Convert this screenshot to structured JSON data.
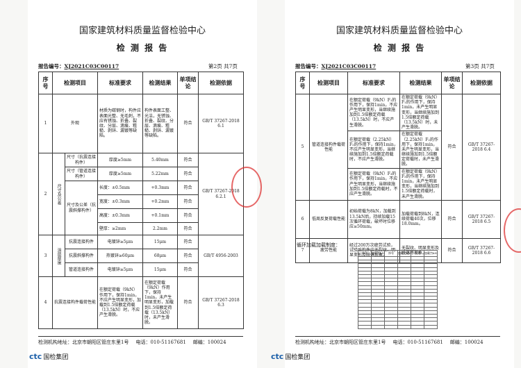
{
  "pages": [
    {
      "header": {
        "org": "国家建筑材料质量监督检验中心",
        "title": "检 测 报 告"
      },
      "report_no_label": "报告编号：",
      "report_no": "XJ2021C03C00117",
      "page_info": "第2页  共7页",
      "table": {
        "headers": [
          "序号",
          "检测项目",
          "标准要求",
          "检测结果",
          "单项结论",
          "检测依据"
        ],
        "rows": [
          {
            "no": "1",
            "item": "外观",
            "requirement": "材质为碳钢时，构件应表面光整、无毛刺，不应有锈蚀、折叠、裂纹、分层、滴痕、粗糙、剥锌、漏镀等缺陷。",
            "result": "构件表面工整、光洁，无锈蚀、折叠、裂纹、分层、滴痕、粗糙、剥锌、漏镀等缺陷。",
            "conclusion": "符合",
            "basis": "GB/T 37267-2018 6.1"
          },
          {
            "no": "2",
            "item": "尺寸及公差",
            "subs": [
              {
                "name": "尺寸（抗震连接构件）",
                "requirement": "厚度≥5mm",
                "result": "5.40mm",
                "conclusion": "符合"
              },
              {
                "name": "尺寸（管道连接构件）",
                "requirement": "厚度≥5mm",
                "result": "5.22mm",
                "conclusion": "符合"
              },
              {
                "name": "尺寸及公差（抗震斜撑构件）",
                "lines": [
                  {
                    "requirement": "长度：±0.5mm",
                    "result": "+0.3mm",
                    "conclusion": "符合"
                  },
                  {
                    "requirement": "宽度：±0.3mm",
                    "result": "+0.2mm",
                    "conclusion": "符合"
                  },
                  {
                    "requirement": "高度：±0.3mm",
                    "result": "+0.1mm",
                    "conclusion": "符合"
                  },
                  {
                    "requirement": "壁厚：≥2mm",
                    "result": "2.2mm",
                    "conclusion": "符合"
                  }
                ]
              }
            ],
            "basis": "GB/T 37267-2018 6.2.1"
          },
          {
            "no": "3",
            "item": "涂层厚度",
            "subs": [
              {
                "name": "抗震连接构件",
                "requirement": "电镀锌≥5μm",
                "result": "15μm",
                "conclusion": "符合"
              },
              {
                "name": "抗震斜撑构件",
                "requirement": "热镀锌≥60μm",
                "result": "68μm",
                "conclusion": "符合"
              },
              {
                "name": "管道连接构件",
                "requirement": "电镀锌≥5μm",
                "result": "15μm",
                "conclusion": "符合"
              }
            ],
            "basis": "GB/T 4956-2003"
          },
          {
            "no": "4",
            "item": "抗震连接构件载荷性能",
            "requirement": "在额定荷载（9kN）作用下，保持1min，不应产生明显变形，加载到1.5倍额定荷载（13.5kN）时，不应产生滑脱。",
            "result": "在额定荷载（9kN）作用下，保持1min，未产生明显变形，加载到1.5倍额定荷载（13.5kN）时，未产生滑脱。",
            "conclusion": "符合",
            "basis": "GB/T 37267-2018 6.3"
          }
        ]
      },
      "footer": {
        "address": "检测机构地址：北京市朝阳区管庄东里1号",
        "phone": "电话：010-51167681",
        "postcode": "邮编：100024"
      },
      "logo": {
        "mark": "ctc",
        "name": "国检集团"
      }
    },
    {
      "header": {
        "org": "国家建筑材料质量监督检验中心",
        "title": "检 测 报 告"
      },
      "report_no_label": "报告编号：",
      "report_no": "XJ2021C03C00117",
      "page_info": "第3页  共7页",
      "table": {
        "headers": [
          "序号",
          "检测项目",
          "标准要求",
          "检测结果",
          "单项结论",
          "检测依据"
        ],
        "rows": [
          {
            "no": "5",
            "item": "管道连接构件载荷性能",
            "subs": [
              {
                "requirement": "在额定荷载（9kN）F₁的作用下，保持1min，不应产生明显变形，当继续施加到1.5倍额定荷载（13.5kN）时，不应产生滑脱。",
                "result": "在额定荷载（9kN）F₁的作用下，保持1min，未产生明显变形，当继续施加到1.5倍额定荷载（13.5kN）时，未产生滑脱。"
              },
              {
                "requirement": "在额定荷载（2.25kN）F₂的作用下，保持1min，不应产生明显变形，当继续施加到1.5倍额定荷载时，不应产生滑脱。",
                "result": "在额定荷载（2.25kN）F₂的作用下，保持1min，未产生明显变形，当继续施加到1.5倍额定荷载时，未产生滑脱。"
              },
              {
                "requirement": "在额定荷载（9kN）F₃的作用下，保持1min，不应产生明显变形，当继续施加到1.5倍额定荷载时，不应产生滑脱。",
                "result": "在额定荷载（9kN）F₃的作用下，保持1min，未产生明显变形，当继续施加到1.5倍额定荷载时，未产生滑脱。"
              }
            ],
            "conclusion": "符合",
            "basis": "GB/T 37267-2018 6.4"
          },
          {
            "no": "6",
            "item": "低周反复荷载性能",
            "requirement": "初始荷载为8kN，加载到13.5kN后，持续加载15次循环荷载，破坏时位移应≥50mm。",
            "result": "加载荷载到8kN，连续荷载40次，位移18.0mm。",
            "conclusion": "符合",
            "basis": "GB/T 37267-2018 6.5"
          },
          {
            "no": "7",
            "item": "疲劳性能",
            "requirement": "经过200万次疲劳试验，试验后构件应无裂纹、明显变形及脱落现象。",
            "result": "无裂纹、明显变形及脱落等现象。",
            "conclusion": "符合",
            "basis": "GB/T 37267-2018 6.6"
          }
        ]
      },
      "loading_title": "循环加载加载制度：",
      "loading_headers": [
        "序号",
        "加载力kN",
        "序号",
        "加载力kN",
        "序号",
        "加载力kN"
      ],
      "footer": {
        "address": "检测机构地址：北京市朝阳区管庄东里1号",
        "phone": "电话：010-51167681",
        "postcode": "邮编：100024"
      },
      "logo": {
        "mark": "ctc",
        "name": "国检集团"
      }
    }
  ]
}
